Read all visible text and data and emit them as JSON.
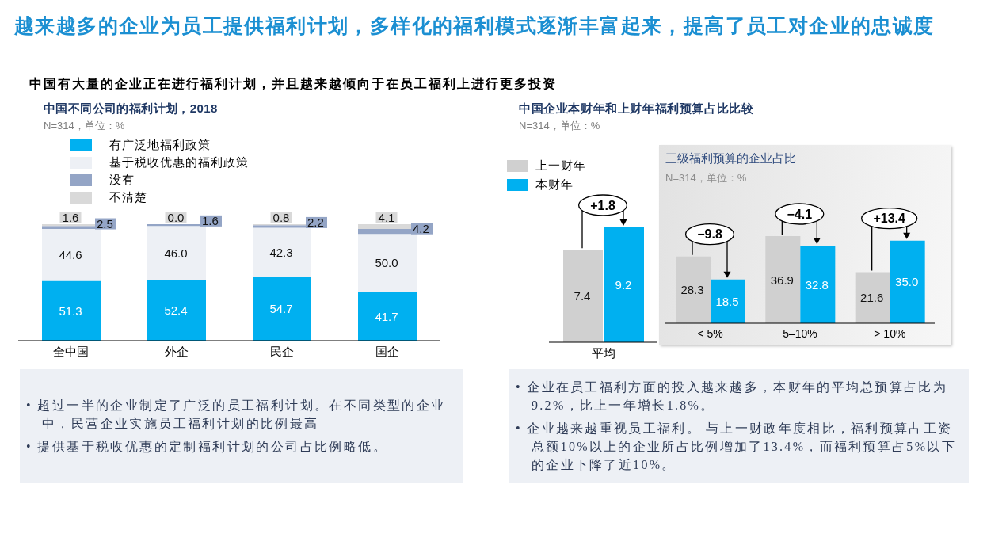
{
  "chart_data": [
    {
      "type": "other",
      "title": "越来越多的企业为员工提供福利计划，多样化的福利模式逐渐丰富起来，提高了员工对企业的忠诚度",
      "subtitle": "中国有大量的企业正在进行福利计划，并且越来越倾向于在员工福利上进行更多投资"
    },
    {
      "type": "bar",
      "stacked": true,
      "title": "中国不同公司的福利计划，2018",
      "subtitle": "N=314，单位：%",
      "categories": [
        "全中国",
        "外企",
        "民企",
        "国企"
      ],
      "series": [
        {
          "name": "有广泛地福利政策",
          "color": "#00b0f0",
          "values": [
            51.3,
            52.4,
            54.7,
            41.7
          ],
          "value_labels": [
            "51.3",
            "52.4",
            "54.7",
            "41.7"
          ]
        },
        {
          "name": "基于税收优惠的福利政策",
          "color": "#edf0f5",
          "values": [
            44.6,
            46.0,
            42.3,
            50.0
          ],
          "value_labels": [
            "44.6",
            "46.0",
            "42.3",
            "50.0"
          ]
        },
        {
          "name": "没有",
          "color": "#94a5c6",
          "values": [
            2.5,
            1.6,
            2.2,
            4.2
          ],
          "value_labels": [
            "2.5",
            "1.6",
            "2.2",
            "4.2"
          ]
        },
        {
          "name": "不清楚",
          "color": "#d9d9d9",
          "values": [
            1.6,
            0.0,
            0.8,
            4.1
          ],
          "value_labels": [
            "1.6",
            "0.0",
            "0.8",
            "4.1"
          ]
        }
      ],
      "legend": "top left",
      "annotations": [
        "• 超过一半的企业制定了广泛的员工福利计划。在不同类型的企业中，民营企业实施员工福利计划的比例最高",
        "• 提供基于税收优惠的定制福利计划的公司占比例略低。"
      ]
    },
    {
      "type": "bar",
      "title": "中国企业本财年和上财年福利预算占比比较",
      "subtitle": "N=314，单位：%",
      "categories": [
        "平均"
      ],
      "series": [
        {
          "name": "上一财年",
          "color": "#d0d0d0",
          "values": [
            7.4
          ]
        },
        {
          "name": "本财年",
          "color": "#00b0f0",
          "values": [
            9.2
          ]
        }
      ],
      "data_labels": true,
      "legend": "top left",
      "annotations": [
        {
          "text": "+1.8",
          "x": "平均",
          "y": 9.2
        },
        "• 企业在员工福利方面的投入越来越多，本财年的平均总预算占比为9.2%，比上一年增长1.8%。",
        "• 企业越来越重视员工福利。 与上一财政年度相比，福利预算占工资总额10%以上的企业所占比例增加了13.4%，而福利预算占5%以下的企业下降了近10%。"
      ]
    },
    {
      "type": "bar",
      "title": "三级福利预算的企业占比",
      "subtitle": "N=314，单位：%",
      "categories": [
        "< 5%",
        "5–10%",
        "> 10%"
      ],
      "series": [
        {
          "color": "#d0d0d0",
          "values": [
            28.3,
            36.9,
            21.6
          ],
          "value_labels": [
            "28.3",
            "36.9",
            "21.6"
          ]
        },
        {
          "color": "#00b0f0",
          "values": [
            18.5,
            32.8,
            35.0
          ],
          "value_labels": [
            "18.5",
            "32.8",
            "35.0"
          ]
        }
      ],
      "annotations": [
        {
          "text": "−9.8",
          "x": "< 5%",
          "y": 28.3
        },
        {
          "text": "−4.1",
          "x": "5–10%",
          "y": 36.9
        },
        {
          "text": "+13.4",
          "x": "> 10%",
          "y": 35.0
        }
      ]
    }
  ]
}
